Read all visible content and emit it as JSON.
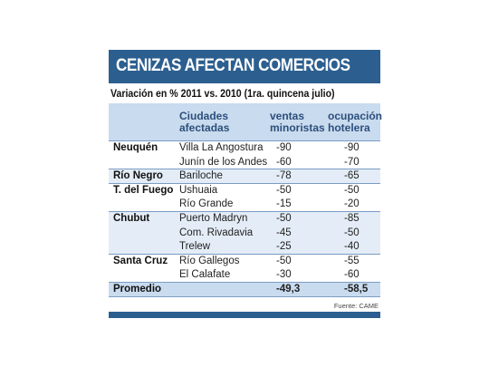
{
  "header": {
    "title": "CENIZAS AFECTAN COMERCIOS",
    "subtitle": "Variación en % 2011 vs. 2010 (1ra. quincena julio)"
  },
  "table": {
    "columns": [
      "Ciudades afectadas",
      "ventas minoristas",
      "ocupación hotelera"
    ],
    "rows": [
      [
        "Neuquén",
        "Villa La Angostura",
        -90,
        -90
      ],
      [
        null,
        "Junín de los Andes",
        -60,
        -70
      ],
      [
        "Río Negro",
        "Bariloche",
        -78,
        -65
      ],
      [
        "T. del Fuego",
        "Ushuaia",
        -50,
        -50
      ],
      [
        null,
        "Río Grande",
        -15,
        -20
      ],
      [
        "Chubut",
        "Puerto Madryn",
        -50,
        -85
      ],
      [
        null,
        "Com. Rivadavia",
        -45,
        -50
      ],
      [
        null,
        "Trelew",
        -25,
        -40
      ],
      [
        "Santa Cruz",
        "Río Gallegos",
        -50,
        -55
      ],
      [
        null,
        "El Calafate",
        -30,
        -60
      ],
      [
        "Promedio",
        null,
        "-49,3",
        "-58,5"
      ]
    ]
  },
  "footer": {
    "source": "Fuente: CAME"
  }
}
